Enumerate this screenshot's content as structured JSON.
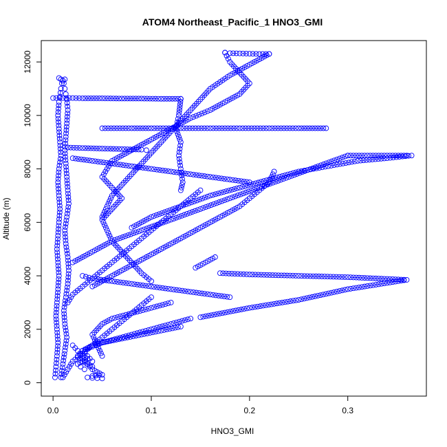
{
  "chart_data": {
    "type": "scatter",
    "title": "ATOM4 Northeast_Pacific_1 HNO3_GMI",
    "xlabel": "HNO3_GMI",
    "ylabel": "Altitude (m)",
    "xlim": [
      -0.012,
      0.38
    ],
    "ylim": [
      -500,
      12800
    ],
    "xticks": [
      0.0,
      0.1,
      0.2,
      0.3
    ],
    "xtick_labels": [
      "0.0",
      "0.1",
      "0.2",
      "0.3"
    ],
    "yticks": [
      0,
      2000,
      4000,
      6000,
      8000,
      10000,
      12000
    ],
    "ytick_labels": [
      "0",
      "2000",
      "4000",
      "6000",
      "8000",
      "10000",
      "12000"
    ],
    "grid": false,
    "marker": "open-circle",
    "color": "#0000ff",
    "series": [
      {
        "x": [
          0.002,
          0.003,
          0.004,
          0.005,
          0.004,
          0.003,
          0.004,
          0.005,
          0.006,
          0.005,
          0.004,
          0.005,
          0.006,
          0.007,
          0.006,
          0.005,
          0.006,
          0.008,
          0.007,
          0.006,
          0.005,
          0.006,
          0.007,
          0.008,
          0.009,
          0.01,
          0.008,
          0.006
        ],
        "y": [
          200,
          600,
          1000,
          1500,
          2000,
          2500,
          3000,
          3500,
          4000,
          4500,
          5000,
          5500,
          6000,
          6500,
          7000,
          7500,
          8000,
          8500,
          9000,
          9500,
          10000,
          10500,
          10700,
          11000,
          11200,
          11300,
          11350,
          11400
        ]
      },
      {
        "x": [
          0.008,
          0.01,
          0.012,
          0.014,
          0.012,
          0.011,
          0.013,
          0.015,
          0.016,
          0.015,
          0.013,
          0.012,
          0.014,
          0.016,
          0.015,
          0.014,
          0.013,
          0.012,
          0.013,
          0.014,
          0.015,
          0.014,
          0.013,
          0.012,
          0.011,
          0.01,
          0.012
        ],
        "y": [
          200,
          700,
          1200,
          1700,
          2200,
          2700,
          3200,
          3700,
          4200,
          4700,
          5200,
          5700,
          6200,
          6700,
          7200,
          7700,
          8200,
          8700,
          9200,
          9700,
          10200,
          10600,
          10800,
          11000,
          11200,
          11300,
          11350
        ]
      },
      {
        "x": [
          0.0,
          0.01,
          0.02,
          0.03,
          0.05,
          0.07,
          0.09,
          0.11,
          0.13
        ],
        "y": [
          10650,
          10650,
          10650,
          10640,
          10640,
          10630,
          10630,
          10620,
          10620
        ]
      },
      {
        "x": [
          0.13,
          0.128,
          0.125,
          0.13,
          0.128,
          0.13,
          0.132,
          0.13
        ],
        "y": [
          10620,
          10000,
          9500,
          9000,
          8500,
          8000,
          7500,
          7200
        ]
      },
      {
        "x": [
          0.05,
          0.08,
          0.1,
          0.13,
          0.16,
          0.19,
          0.22,
          0.25,
          0.278
        ],
        "y": [
          9520,
          9520,
          9520,
          9520,
          9520,
          9520,
          9520,
          9520,
          9520
        ]
      },
      {
        "x": [
          0.015,
          0.03,
          0.05,
          0.07,
          0.09,
          0.095
        ],
        "y": [
          8800,
          8780,
          8760,
          8740,
          8720,
          8700
        ]
      },
      {
        "x": [
          0.175,
          0.18,
          0.19,
          0.2,
          0.21,
          0.22
        ],
        "y": [
          12350,
          12330,
          12320,
          12310,
          12300,
          12300
        ]
      },
      {
        "x": [
          0.175,
          0.18,
          0.19,
          0.2,
          0.19,
          0.175,
          0.16,
          0.14,
          0.12,
          0.1,
          0.08,
          0.06,
          0.05,
          0.06,
          0.07,
          0.06,
          0.05,
          0.055,
          0.06,
          0.07,
          0.08,
          0.09,
          0.1
        ],
        "y": [
          12350,
          12000,
          11600,
          11200,
          10800,
          10500,
          10200,
          9900,
          9500,
          9100,
          8700,
          8300,
          7700,
          7300,
          6900,
          6500,
          6100,
          5700,
          5300,
          4900,
          4500,
          4100,
          3800
        ]
      },
      {
        "x": [
          0.22,
          0.2,
          0.18,
          0.16,
          0.15,
          0.14,
          0.13,
          0.12,
          0.11,
          0.1,
          0.09,
          0.08,
          0.07,
          0.06,
          0.055,
          0.05
        ],
        "y": [
          12300,
          11900,
          11500,
          11000,
          10600,
          10200,
          9800,
          9400,
          9000,
          8600,
          8200,
          7800,
          7400,
          7000,
          6600,
          6200
        ]
      },
      {
        "x": [
          0.02,
          0.04,
          0.06,
          0.08,
          0.1,
          0.12,
          0.14,
          0.16,
          0.18,
          0.2
        ],
        "y": [
          8400,
          8300,
          8200,
          8100,
          8000,
          7900,
          7800,
          7700,
          7600,
          7500
        ]
      },
      {
        "x": [
          0.225,
          0.22,
          0.21,
          0.2,
          0.19,
          0.18,
          0.17,
          0.16,
          0.15,
          0.14,
          0.13,
          0.12,
          0.11,
          0.1,
          0.09,
          0.08,
          0.07,
          0.06,
          0.05,
          0.04
        ],
        "y": [
          7900,
          7500,
          7200,
          6900,
          6600,
          6400,
          6200,
          6000,
          5800,
          5600,
          5400,
          5200,
          5000,
          4800,
          4600,
          4400,
          4200,
          4000,
          3800,
          3600
        ]
      },
      {
        "x": [
          0.3,
          0.32,
          0.34,
          0.36,
          0.365,
          0.34,
          0.31,
          0.28,
          0.25,
          0.22,
          0.19,
          0.16,
          0.13,
          0.1,
          0.08
        ],
        "y": [
          8500,
          8500,
          8500,
          8500,
          8500,
          8400,
          8300,
          8100,
          7900,
          7600,
          7300,
          7000,
          6600,
          6200,
          5800
        ]
      },
      {
        "x": [
          0.3,
          0.27,
          0.24,
          0.21,
          0.18,
          0.15,
          0.12,
          0.09,
          0.06,
          0.04,
          0.02
        ],
        "y": [
          8500,
          8100,
          7700,
          7300,
          6900,
          6500,
          6100,
          5700,
          5300,
          4900,
          4500
        ]
      },
      {
        "x": [
          0.15,
          0.14,
          0.13,
          0.12,
          0.11,
          0.1,
          0.09,
          0.08,
          0.07,
          0.06,
          0.05,
          0.04,
          0.03,
          0.02,
          0.015
        ],
        "y": [
          7200,
          6900,
          6600,
          6300,
          6000,
          5700,
          5400,
          5100,
          4800,
          4500,
          4200,
          3900,
          3600,
          3300,
          3000
        ]
      },
      {
        "x": [
          0.17,
          0.2,
          0.25,
          0.3,
          0.36,
          0.3,
          0.25,
          0.2,
          0.15
        ],
        "y": [
          4100,
          4050,
          4000,
          3950,
          3850,
          3500,
          3100,
          2800,
          2450
        ]
      },
      {
        "x": [
          0.145,
          0.15,
          0.155,
          0.16,
          0.165
        ],
        "y": [
          4300,
          4400,
          4500,
          4600,
          4700
        ]
      },
      {
        "x": [
          0.18,
          0.16,
          0.14,
          0.12,
          0.1,
          0.08,
          0.06,
          0.04,
          0.03
        ],
        "y": [
          3200,
          3300,
          3400,
          3500,
          3600,
          3700,
          3800,
          3900,
          4000
        ]
      },
      {
        "x": [
          0.14,
          0.12,
          0.1,
          0.08,
          0.06,
          0.04,
          0.03,
          0.035,
          0.04
        ],
        "y": [
          2400,
          2200,
          2000,
          1800,
          1600,
          1400,
          1200,
          1000,
          800
        ]
      },
      {
        "x": [
          0.13,
          0.11,
          0.09,
          0.07,
          0.05,
          0.04,
          0.03,
          0.025,
          0.03,
          0.04
        ],
        "y": [
          2100,
          1950,
          1800,
          1650,
          1500,
          1350,
          1200,
          1000,
          800,
          600
        ]
      },
      {
        "x": [
          0.12,
          0.1,
          0.08,
          0.06,
          0.05,
          0.04,
          0.045,
          0.05
        ],
        "y": [
          3000,
          2800,
          2600,
          2400,
          2200,
          1800,
          1400,
          1000
        ]
      },
      {
        "x": [
          0.1,
          0.09,
          0.08,
          0.07,
          0.06,
          0.05,
          0.04,
          0.03,
          0.02,
          0.015,
          0.01
        ],
        "y": [
          3200,
          2900,
          2600,
          2300,
          2000,
          1700,
          1400,
          1100,
          800,
          500,
          200
        ]
      },
      {
        "x": [
          0.03,
          0.035,
          0.04,
          0.045,
          0.05,
          0.04,
          0.035,
          0.04,
          0.045,
          0.05
        ],
        "y": [
          900,
          700,
          500,
          400,
          300,
          250,
          200,
          180,
          170,
          160
        ]
      },
      {
        "x": [
          0.02,
          0.025,
          0.03,
          0.035,
          0.03,
          0.025,
          0.028,
          0.032
        ],
        "y": [
          1400,
          1200,
          1000,
          900,
          800,
          700,
          600,
          500
        ]
      }
    ]
  }
}
